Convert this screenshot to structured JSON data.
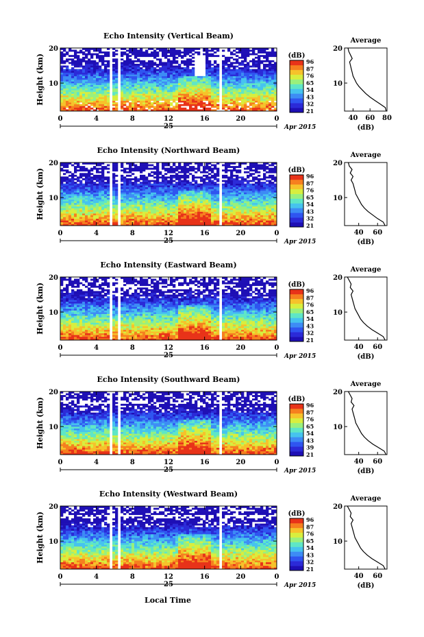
{
  "figure": {
    "xlabel": "Local Time",
    "date_tag": "Apr 2015",
    "day_label": "25",
    "profile_title": "Average",
    "profile_xlabel": "(dB)",
    "colorbar_title": "(dB)",
    "ylabel": "Height (km)"
  },
  "colors": {
    "palette": [
      "#1e0fb5",
      "#2b2ad8",
      "#2f55f0",
      "#3d8cf5",
      "#46c3ee",
      "#5fe6c6",
      "#9af07c",
      "#d8ee3e",
      "#f6c22b",
      "#f67f1f",
      "#e83319"
    ]
  },
  "chart_data": [
    {
      "type": "heatmap",
      "title": "Echo Intensity (Vertical Beam)",
      "xlabel": "Local Time",
      "ylabel": "Height (km)",
      "xlim": [
        0,
        24
      ],
      "ylim": [
        2,
        20
      ],
      "xticks": [
        "0",
        "4",
        "8",
        "12",
        "16",
        "20",
        "0"
      ],
      "yticks": [
        "10",
        "20"
      ],
      "colorbar_ticks": [
        "96",
        "87",
        "76",
        "65",
        "54",
        "43",
        "32",
        "21"
      ],
      "gaps": [
        [
          5.5,
          5.8
        ],
        [
          6.3,
          6.7
        ],
        [
          17.6,
          17.8
        ]
      ],
      "profile": {
        "xlim": [
          30,
          80
        ],
        "xticks": [
          "40",
          "60",
          "80"
        ],
        "yticks": [
          "10",
          "20"
        ],
        "height_km": [
          2,
          3,
          4,
          5,
          6,
          7,
          8,
          9,
          10,
          11,
          12,
          13,
          14,
          15,
          16,
          17,
          18,
          19,
          20
        ],
        "avg_db": [
          79,
          78,
          72,
          66,
          60,
          55,
          51,
          47,
          44,
          42,
          40,
          39,
          38,
          37,
          36,
          39,
          37,
          35,
          34
        ]
      }
    },
    {
      "type": "heatmap",
      "title": "Echo Intensity (Northward Beam)",
      "xlabel": "Local Time",
      "ylabel": "Height (km)",
      "xlim": [
        0,
        24
      ],
      "ylim": [
        2,
        20
      ],
      "xticks": [
        "0",
        "4",
        "8",
        "12",
        "16",
        "20",
        "0"
      ],
      "yticks": [
        "10",
        "20"
      ],
      "colorbar_ticks": [
        "96",
        "87",
        "76",
        "65",
        "54",
        "43",
        "32",
        "21"
      ],
      "gaps": [
        [
          5.5,
          5.8
        ],
        [
          6.3,
          6.7
        ],
        [
          17.6,
          17.8
        ]
      ],
      "profile": {
        "xlim": [
          25,
          70
        ],
        "xticks": [
          "40",
          "60"
        ],
        "yticks": [
          "10",
          "20"
        ],
        "height_km": [
          2,
          3,
          4,
          5,
          6,
          7,
          8,
          9,
          10,
          11,
          12,
          13,
          14,
          15,
          16,
          17,
          18,
          19,
          20
        ],
        "avg_db": [
          68,
          66,
          60,
          55,
          50,
          46,
          43,
          41,
          39,
          37,
          36,
          35,
          34,
          32,
          34,
          31,
          33,
          30,
          29
        ]
      }
    },
    {
      "type": "heatmap",
      "title": "Echo Intensity (Eastward Beam)",
      "xlabel": "Local Time",
      "ylabel": "Height (km)",
      "xlim": [
        0,
        24
      ],
      "ylim": [
        2,
        20
      ],
      "xticks": [
        "0",
        "4",
        "8",
        "12",
        "16",
        "20",
        "0"
      ],
      "yticks": [
        "10",
        "20"
      ],
      "colorbar_ticks": [
        "96",
        "87",
        "76",
        "65",
        "54",
        "43",
        "32",
        "21"
      ],
      "gaps": [
        [
          5.5,
          5.8
        ],
        [
          6.3,
          6.7
        ],
        [
          17.6,
          17.8
        ]
      ],
      "profile": {
        "xlim": [
          25,
          70
        ],
        "xticks": [
          "40",
          "60"
        ],
        "yticks": [
          "10",
          "20"
        ],
        "height_km": [
          2,
          3,
          4,
          5,
          6,
          7,
          8,
          9,
          10,
          11,
          12,
          13,
          14,
          15,
          16,
          17,
          18,
          19,
          20
        ],
        "avg_db": [
          68,
          66,
          60,
          54,
          49,
          45,
          42,
          40,
          38,
          36,
          35,
          34,
          33,
          32,
          34,
          31,
          32,
          30,
          28
        ]
      }
    },
    {
      "type": "heatmap",
      "title": "Echo Intensity (Southward Beam)",
      "xlabel": "Local Time",
      "ylabel": "Height (km)",
      "xlim": [
        0,
        24
      ],
      "ylim": [
        2,
        20
      ],
      "xticks": [
        "0",
        "4",
        "8",
        "12",
        "16",
        "20",
        "0"
      ],
      "yticks": [
        "10",
        "20"
      ],
      "colorbar_ticks": [
        "96",
        "87",
        "76",
        "65",
        "54",
        "43",
        "39",
        "21"
      ],
      "gaps": [
        [
          5.5,
          5.8
        ],
        [
          6.3,
          6.7
        ],
        [
          17.6,
          17.8
        ]
      ],
      "profile": {
        "xlim": [
          25,
          70
        ],
        "xticks": [
          "40",
          "60"
        ],
        "yticks": [
          "10",
          "20"
        ],
        "height_km": [
          2,
          3,
          4,
          5,
          6,
          7,
          8,
          9,
          10,
          11,
          12,
          13,
          14,
          15,
          16,
          17,
          18,
          19,
          20
        ],
        "avg_db": [
          69,
          67,
          61,
          55,
          50,
          46,
          43,
          41,
          39,
          37,
          36,
          35,
          34,
          33,
          35,
          32,
          33,
          31,
          29
        ]
      }
    },
    {
      "type": "heatmap",
      "title": "Echo Intensity (Westward Beam)",
      "xlabel": "Local Time",
      "ylabel": "Height (km)",
      "xlim": [
        0,
        24
      ],
      "ylim": [
        2,
        20
      ],
      "xticks": [
        "0",
        "4",
        "8",
        "12",
        "16",
        "20",
        "0"
      ],
      "yticks": [
        "10",
        "20"
      ],
      "colorbar_ticks": [
        "96",
        "87",
        "76",
        "65",
        "54",
        "43",
        "32",
        "21"
      ],
      "gaps": [
        [
          5.5,
          5.8
        ],
        [
          6.3,
          6.7
        ],
        [
          17.6,
          17.8
        ]
      ],
      "profile": {
        "xlim": [
          25,
          70
        ],
        "xticks": [
          "40",
          "60"
        ],
        "yticks": [
          "10",
          "20"
        ],
        "height_km": [
          2,
          3,
          4,
          5,
          6,
          7,
          8,
          9,
          10,
          11,
          12,
          13,
          14,
          15,
          16,
          17,
          18,
          19,
          20
        ],
        "avg_db": [
          68,
          66,
          60,
          54,
          49,
          45,
          42,
          40,
          38,
          36,
          35,
          34,
          33,
          32,
          34,
          31,
          32,
          30,
          28
        ]
      }
    }
  ]
}
